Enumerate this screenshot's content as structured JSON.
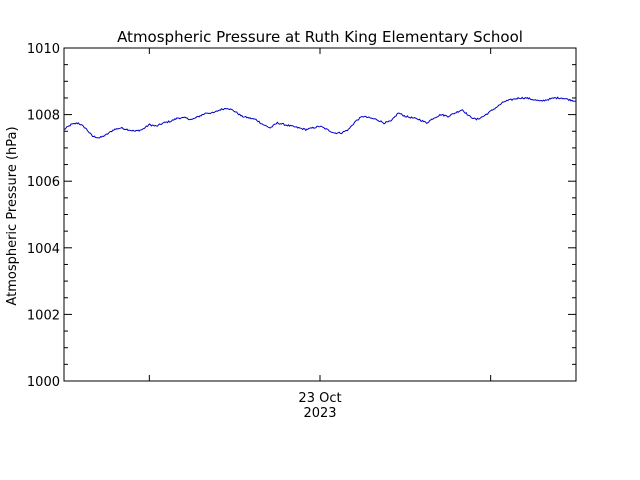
{
  "chart_data": {
    "type": "line",
    "title": "Atmospheric Pressure at Ruth King Elementary School",
    "xlabel": "",
    "ylabel": "Atmospheric Pressure (hPa)",
    "ylim": [
      1000,
      1010
    ],
    "y_ticks": [
      1000,
      1002,
      1004,
      1006,
      1008,
      1010
    ],
    "y_tick_labels": [
      "1000",
      "1002",
      "1004",
      "1006",
      "1008",
      "1010"
    ],
    "x_tick_label_line1": "23 Oct",
    "x_tick_label_line2": "2023",
    "xlim_hours": [
      -36,
      36
    ],
    "x_major_ticks_hours": [
      -24,
      0,
      24
    ],
    "grid": false,
    "line_color": "#0000cc",
    "series": [
      {
        "x_hours": [
          -36,
          -35,
          -34,
          -33,
          -32,
          -31,
          -30,
          -29,
          -28,
          -27,
          -26,
          -25,
          -24,
          -23,
          -22,
          -21,
          -20,
          -19,
          -18,
          -17,
          -16,
          -15,
          -14,
          -13,
          -12,
          -11,
          -10,
          -9,
          -8,
          -7,
          -6,
          -5,
          -4,
          -3,
          -2,
          -1,
          0,
          1,
          2,
          3,
          4,
          5,
          6,
          7,
          8,
          9,
          10,
          11,
          12,
          13,
          14,
          15,
          16,
          17,
          18,
          19,
          20,
          21,
          22,
          23,
          24,
          25,
          26,
          27,
          28,
          29,
          30,
          31,
          32,
          33,
          34,
          35,
          36
        ],
        "values": [
          1007.55,
          1007.7,
          1007.75,
          1007.6,
          1007.35,
          1007.3,
          1007.4,
          1007.55,
          1007.6,
          1007.55,
          1007.5,
          1007.55,
          1007.7,
          1007.65,
          1007.75,
          1007.8,
          1007.9,
          1007.9,
          1007.85,
          1007.95,
          1008.05,
          1008.05,
          1008.15,
          1008.2,
          1008.1,
          1007.95,
          1007.9,
          1007.85,
          1007.7,
          1007.6,
          1007.75,
          1007.7,
          1007.65,
          1007.6,
          1007.55,
          1007.6,
          1007.65,
          1007.55,
          1007.45,
          1007.45,
          1007.55,
          1007.8,
          1007.95,
          1007.9,
          1007.85,
          1007.75,
          1007.8,
          1008.05,
          1007.95,
          1007.9,
          1007.85,
          1007.75,
          1007.9,
          1008.0,
          1007.95,
          1008.05,
          1008.15,
          1007.95,
          1007.85,
          1007.95,
          1008.1,
          1008.25,
          1008.4,
          1008.45,
          1008.5,
          1008.5,
          1008.45,
          1008.4,
          1008.45,
          1008.5,
          1008.5,
          1008.45,
          1008.4
        ]
      }
    ]
  }
}
